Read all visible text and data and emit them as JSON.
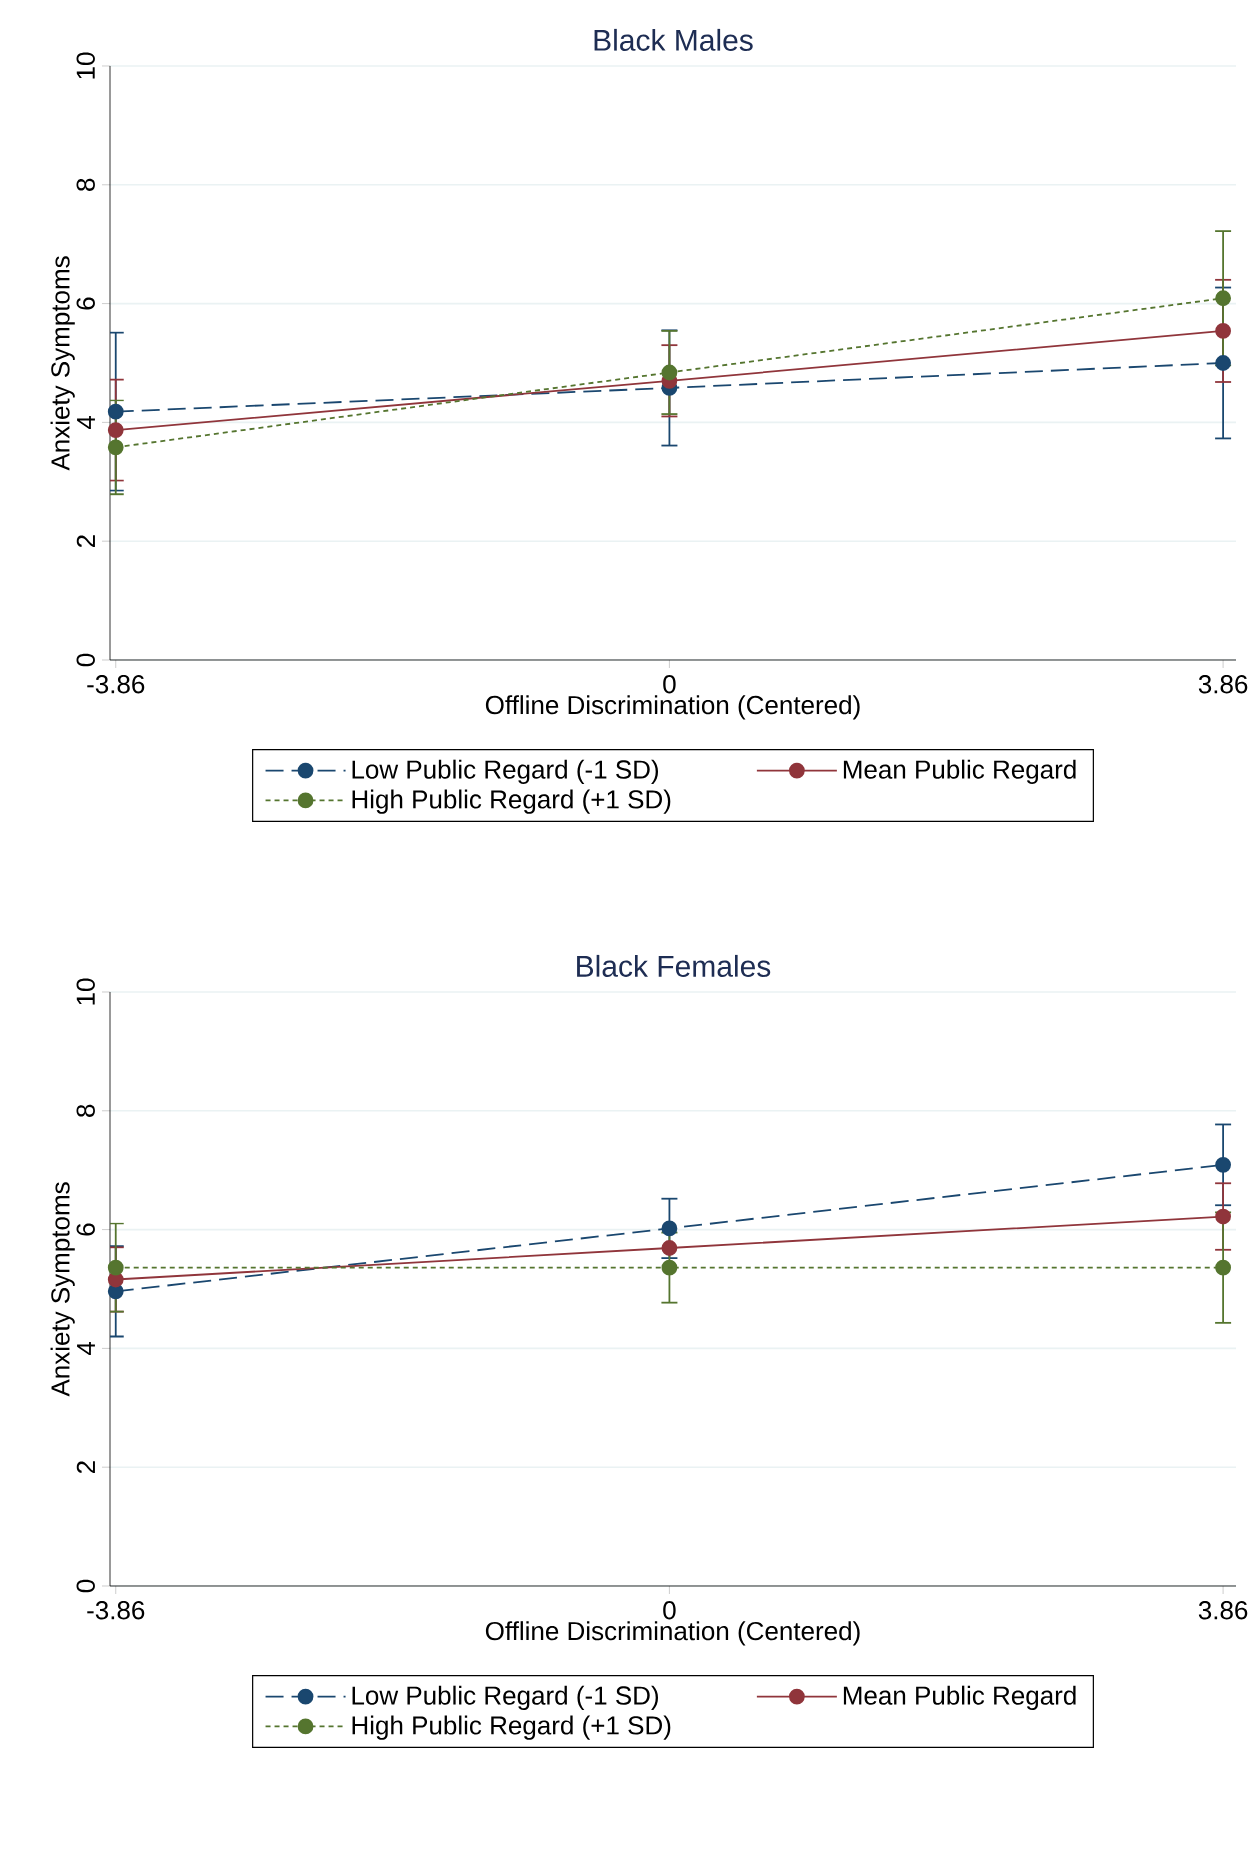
{
  "chart_data": [
    {
      "type": "line",
      "title": "Black Males",
      "xlabel": "Offline Discrimination (Centered)",
      "ylabel": "Anxiety Symptoms",
      "x": [
        -3.86,
        0,
        3.86
      ],
      "xlim": [
        -3.9,
        3.95
      ],
      "xticks": [
        -3.86,
        0,
        3.86
      ],
      "ylim": [
        0,
        10
      ],
      "yticks": [
        0,
        2,
        4,
        6,
        8,
        10
      ],
      "grid": "y",
      "legend": "bottom",
      "marker": "circle",
      "series": [
        {
          "name": "Low Public Regard (-1 SD)",
          "color": "#1a476f",
          "line_style": "dashed",
          "values": [
            4.18,
            4.58,
            5.0
          ],
          "errors": [
            1.33,
            0.97,
            1.27
          ]
        },
        {
          "name": "Mean Public Regard",
          "color": "#90353b",
          "line_style": "solid",
          "values": [
            3.87,
            4.7,
            5.54
          ],
          "errors": [
            0.85,
            0.6,
            0.86
          ]
        },
        {
          "name": "High Public Regard (+1 SD)",
          "color": "#55752f",
          "line_style": "dotted",
          "values": [
            3.58,
            4.84,
            6.09
          ],
          "errors": [
            0.79,
            0.7,
            1.13
          ]
        }
      ]
    },
    {
      "type": "line",
      "title": "Black Females",
      "xlabel": "Offline Discrimination (Centered)",
      "ylabel": "Anxiety Symptoms",
      "x": [
        -3.86,
        0,
        3.86
      ],
      "xlim": [
        -3.9,
        3.95
      ],
      "xticks": [
        -3.86,
        0,
        3.86
      ],
      "ylim": [
        0,
        10
      ],
      "yticks": [
        0,
        2,
        4,
        6,
        8,
        10
      ],
      "grid": "y",
      "legend": "bottom",
      "marker": "circle",
      "series": [
        {
          "name": "Low Public Regard (-1 SD)",
          "color": "#1a476f",
          "line_style": "dashed",
          "values": [
            4.96,
            6.02,
            7.09
          ],
          "errors": [
            0.76,
            0.5,
            0.68
          ]
        },
        {
          "name": "Mean Public Regard",
          "color": "#90353b",
          "line_style": "solid",
          "values": [
            5.16,
            5.69,
            6.22
          ],
          "errors": [
            0.54,
            null,
            0.56
          ]
        },
        {
          "name": "High Public Regard (+1 SD)",
          "color": "#55752f",
          "line_style": "dotted",
          "values": [
            5.36,
            5.36,
            5.36
          ],
          "errors": [
            0.74,
            0.59,
            0.93
          ]
        }
      ]
    }
  ]
}
